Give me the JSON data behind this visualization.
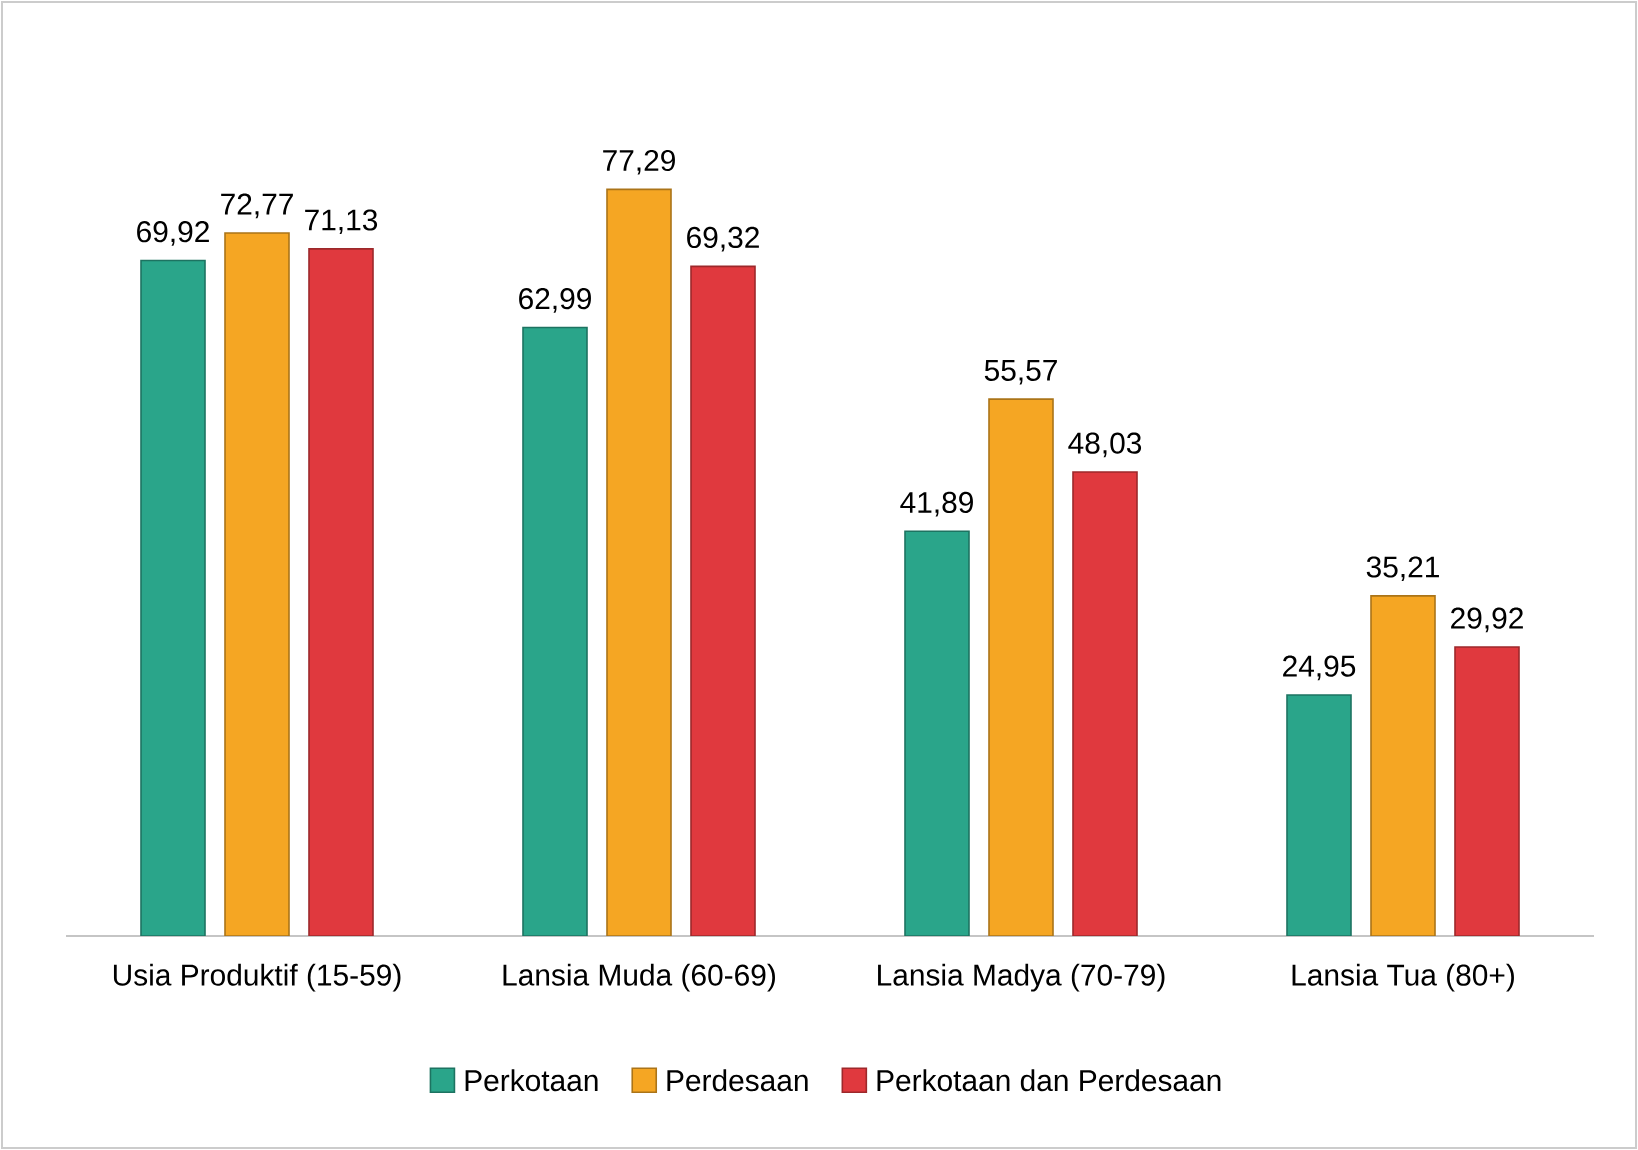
{
  "chart_data": {
    "type": "bar",
    "categories": [
      "Usia Produktif (15-59)",
      "Lansia Muda (60-69)",
      "Lansia Madya (70-79)",
      "Lansia Tua (80+)"
    ],
    "series": [
      {
        "name": "Perkotaan",
        "color": "#2aa58a",
        "values": [
          69.92,
          62.99,
          41.89,
          24.95
        ],
        "value_labels": [
          "69,92",
          "62,99",
          "41,89",
          "24,95"
        ]
      },
      {
        "name": "Perdesaan",
        "color": "#f5a623",
        "values": [
          72.77,
          77.29,
          55.57,
          35.21
        ],
        "value_labels": [
          "72,77",
          "77,29",
          "55,57",
          "35,21"
        ]
      },
      {
        "name": "Perkotaan dan Perdesaan",
        "color": "#e0393e",
        "values": [
          71.13,
          69.32,
          48.03,
          29.92
        ],
        "value_labels": [
          "71,13",
          "69,32",
          "48,03",
          "29,92"
        ]
      }
    ],
    "legend": "bottom"
  }
}
